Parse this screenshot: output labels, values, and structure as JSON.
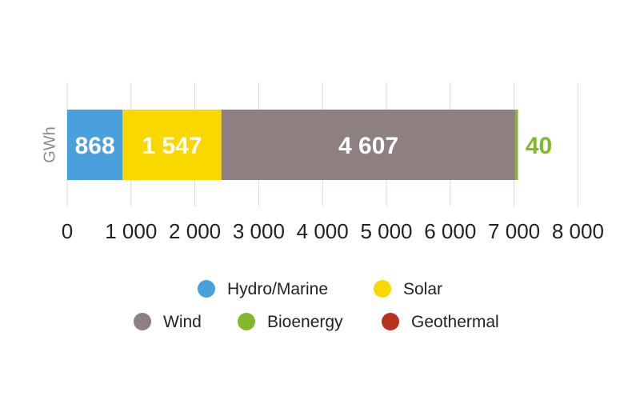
{
  "chart_data": {
    "type": "bar",
    "orientation": "horizontal",
    "stacked": true,
    "ylabel": "GWh",
    "xlim": [
      0,
      8000
    ],
    "xticks": [
      0,
      1000,
      2000,
      3000,
      4000,
      5000,
      6000,
      7000,
      8000
    ],
    "xtick_labels": [
      "0",
      "1 000",
      "2 000",
      "3 000",
      "4 000",
      "5 000",
      "6 000",
      "7 000",
      "8 000"
    ],
    "grid": true,
    "legend_position": "bottom",
    "series": [
      {
        "name": "Hydro/Marine",
        "value": 868,
        "label": "868",
        "color": "#4aa0dc",
        "label_color": "#ffffff"
      },
      {
        "name": "Solar",
        "value": 1547,
        "label": "1 547",
        "color": "#f9d800",
        "label_color": "#ffffff"
      },
      {
        "name": "Wind",
        "value": 4607,
        "label": "4 607",
        "color": "#8e7f81",
        "label_color": "#ffffff"
      },
      {
        "name": "Bioenergy",
        "value": 40,
        "label": "40",
        "color": "#82b92c",
        "label_color": "#82b92c"
      },
      {
        "name": "Geothermal",
        "value": 0,
        "label": "",
        "color": "#b5331f",
        "label_color": "#b5331f"
      }
    ]
  }
}
